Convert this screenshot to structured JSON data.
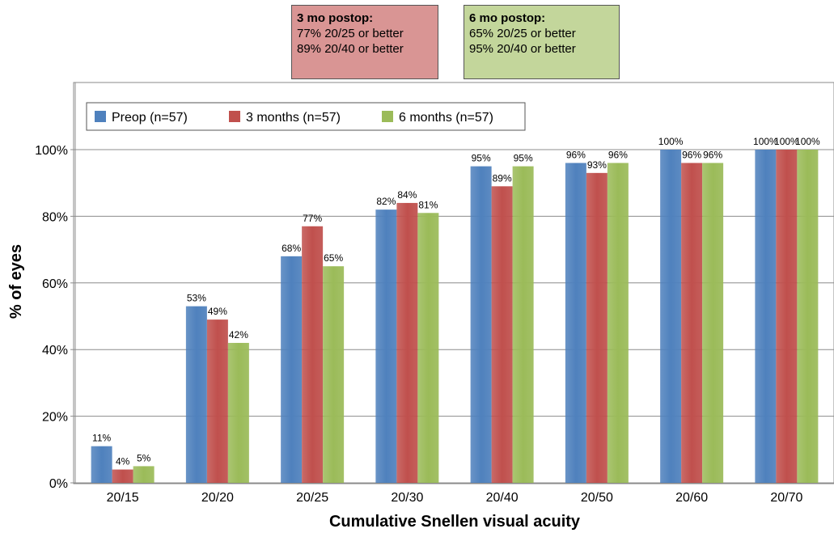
{
  "callouts": [
    {
      "title": "3 mo postop:",
      "line1": "77% 20/25 or better",
      "line2": "89% 20/40 or better",
      "bg": "#d99594"
    },
    {
      "title": "6 mo postop:",
      "line1": "65% 20/25 or better",
      "line2": "95% 20/40 or better",
      "bg": "#c3d69b"
    }
  ],
  "chart_data": {
    "type": "bar",
    "xlabel": "Cumulative Snellen visual acuity",
    "ylabel": "% of eyes",
    "ylim": [
      0,
      100
    ],
    "yticks": [
      "0%",
      "20%",
      "40%",
      "60%",
      "80%",
      "100%"
    ],
    "grid": true,
    "legend_position": "top-left",
    "categories": [
      "20/15",
      "20/20",
      "20/25",
      "20/30",
      "20/40",
      "20/50",
      "20/60",
      "20/70"
    ],
    "series": [
      {
        "name": "Preop (n=57)",
        "color": "#4f81bd",
        "values": [
          11,
          53,
          68,
          82,
          95,
          96,
          100,
          100
        ],
        "labels": [
          "11%",
          "53%",
          "68%",
          "82%",
          "95%",
          "96%",
          "100%",
          "100%"
        ]
      },
      {
        "name": "3 months (n=57)",
        "color": "#c0504d",
        "values": [
          4,
          49,
          77,
          84,
          89,
          93,
          96,
          100
        ],
        "labels": [
          "4%",
          "49%",
          "77%",
          "84%",
          "89%",
          "93%",
          "96%",
          "100%"
        ]
      },
      {
        "name": "6 months (n=57)",
        "color": "#9bbb59",
        "values": [
          5,
          42,
          65,
          81,
          95,
          96,
          96,
          100
        ],
        "labels": [
          "5%",
          "42%",
          "65%",
          "81%",
          "95%",
          "96%",
          "96%",
          "100%"
        ]
      }
    ]
  }
}
